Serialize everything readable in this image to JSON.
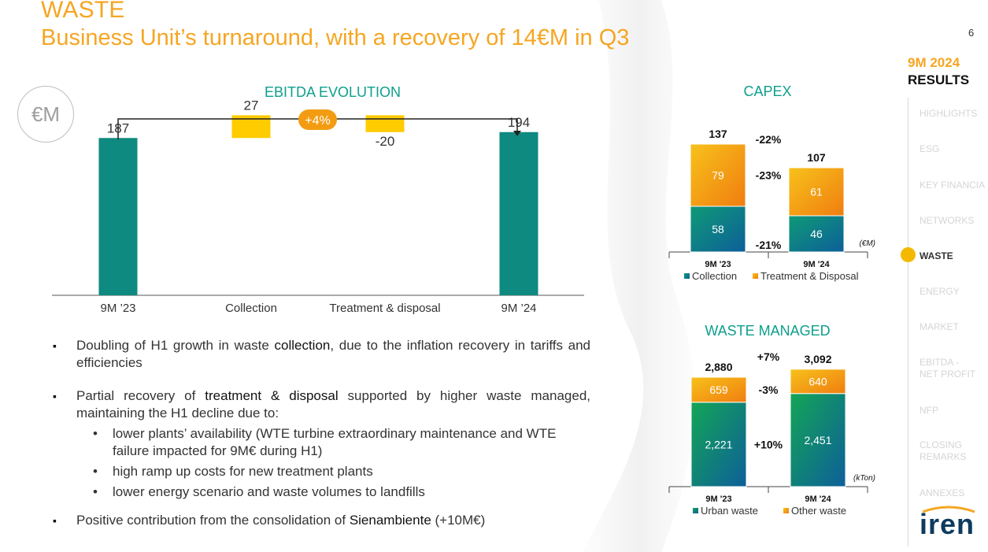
{
  "header": {
    "title": "WASTE",
    "subtitle": "Business Unit’s turnaround, with a recovery of 14€M in Q3",
    "page_number": "6",
    "unit_badge": "€M"
  },
  "nav": {
    "heading_line1": "9M 2024",
    "heading_line2": "RESULTS",
    "items": [
      {
        "label": "HIGHLIGHTS",
        "active": false
      },
      {
        "label": "ESG",
        "active": false
      },
      {
        "label": "KEY FINANCIA",
        "active": false
      },
      {
        "label": "NETWORKS",
        "active": false
      },
      {
        "label": "WASTE",
        "active": true
      },
      {
        "label": "ENERGY",
        "active": false
      },
      {
        "label": "MARKET",
        "active": false
      },
      {
        "label": "EBITDA -\nNET PROFIT",
        "active": false
      },
      {
        "label": "NFP",
        "active": false
      },
      {
        "label": "CLOSING\nREMARKS",
        "active": false
      },
      {
        "label": "ANNEXES",
        "active": false
      }
    ],
    "logo_text": "iren"
  },
  "bullets": [
    {
      "level": 1,
      "parts": [
        [
          "Doubling of H1 growth in waste ",
          false
        ],
        [
          "collection",
          true
        ],
        [
          ", due to the inflation recovery in tariffs and efficiencies",
          false
        ]
      ]
    },
    {
      "level": 1,
      "parts": [
        [
          "Partial recovery of ",
          false
        ],
        [
          "treatment & disposal",
          true
        ],
        [
          " supported by higher waste managed, maintaining the H1 decline due to:",
          false
        ]
      ]
    },
    {
      "level": 2,
      "parts": [
        [
          "lower plants’ availability (WTE turbine extraordinary maintenance and WTE failure impacted for 9M€ during H1)",
          false
        ]
      ]
    },
    {
      "level": 2,
      "parts": [
        [
          "high ramp up costs for new treatment plants",
          false
        ]
      ]
    },
    {
      "level": 2,
      "parts": [
        [
          "lower energy scenario and waste volumes to landfills",
          false
        ]
      ]
    },
    {
      "level": 1,
      "parts": [
        [
          "Positive contribution from the consolidation of ",
          false
        ],
        [
          "Sienambiente",
          true
        ],
        [
          " (+10M€)",
          false
        ]
      ]
    }
  ],
  "chart_data": [
    {
      "id": "ebitda",
      "type": "waterfall",
      "title": "EBITDA EVOLUTION",
      "categories": [
        "9M ’23",
        "Collection",
        "Treatment & disposal",
        "9M ’24"
      ],
      "values": [
        187,
        27,
        -20,
        194
      ],
      "labels": [
        "187",
        "27",
        "-20",
        "194"
      ],
      "kinds": [
        "total",
        "delta",
        "delta",
        "total"
      ],
      "change_label": "+4%",
      "colors": {
        "total": "#0e8a80",
        "delta": "#ffcc00",
        "badge": "#f39c12"
      },
      "ylim": [
        0,
        220
      ]
    },
    {
      "id": "capex",
      "type": "stacked_bar",
      "title": "CAPEX",
      "unit": "(€M)",
      "categories": [
        "9M '23",
        "9M '24"
      ],
      "totals": [
        "137",
        "107"
      ],
      "series": [
        {
          "name": "Collection",
          "values": [
            58,
            46
          ],
          "labels": [
            "58",
            "46"
          ],
          "color_a": "#0e9a76",
          "color_b": "#0d5f99"
        },
        {
          "name": "Treatment & Disposal",
          "values": [
            79,
            61
          ],
          "labels": [
            "79",
            "61"
          ],
          "color_a": "#f7c21b",
          "color_b": "#f07d10"
        }
      ],
      "changes": {
        "total": "-22%",
        "top": "-23%",
        "bottom": "-21%"
      },
      "ylim": [
        0,
        140
      ]
    },
    {
      "id": "waste_managed",
      "type": "stacked_bar",
      "title": "WASTE MANAGED",
      "unit": "(kTon)",
      "categories": [
        "9M '23",
        "9M '24"
      ],
      "totals": [
        "2,880",
        "3,092"
      ],
      "series": [
        {
          "name": "Urban waste",
          "values": [
            2221,
            2451
          ],
          "labels": [
            "2,221",
            "2,451"
          ],
          "color_a": "#14a556",
          "color_b": "#0d5f99"
        },
        {
          "name": "Other waste",
          "values": [
            659,
            640
          ],
          "labels": [
            "659",
            "640"
          ],
          "color_a": "#f7c21b",
          "color_b": "#f07d10"
        }
      ],
      "changes": {
        "total": "+7%",
        "top": "-3%",
        "bottom": "+10%"
      },
      "ylim": [
        0,
        3150
      ]
    }
  ]
}
